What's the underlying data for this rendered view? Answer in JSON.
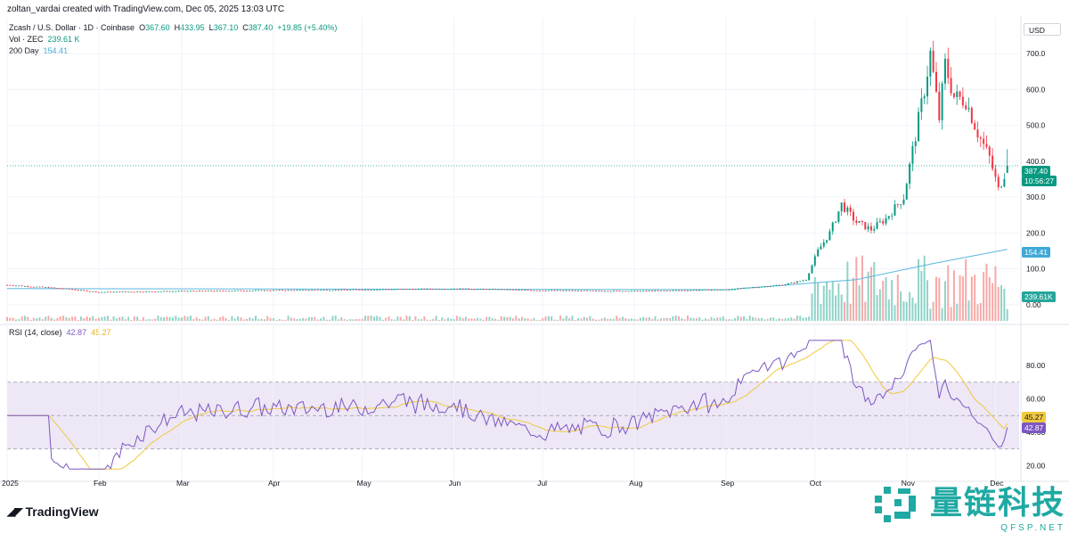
{
  "caption": "zoltan_vardai created with TradingView.com, Dec 05, 2025 13:03 UTC",
  "legend": {
    "symbol": "Zcash / U.S. Dollar · 1D · Coinbase",
    "o_lbl": "O",
    "o": "367.60",
    "h_lbl": "H",
    "h": "433.95",
    "l_lbl": "L",
    "l": "367.10",
    "c_lbl": "C",
    "c": "387.40",
    "chg": "+19.85 (+5.40%)",
    "vol_lbl": "Vol · ZEC",
    "vol": "239.61 K",
    "ma_lbl": "200 Day",
    "ma": "154.41",
    "rsi_lbl": "RSI (14, close)",
    "rsi": "42.87",
    "rsi_ma": "45.27"
  },
  "currency": "USD",
  "tags": {
    "price": "387.40",
    "countdown": "10:56:27",
    "ma": "154.41",
    "vol": "239.61K",
    "rsi_ma": "45.27",
    "rsi": "42.87"
  },
  "brand": "TradingView",
  "watermark": {
    "text": "量链科技",
    "sub": "QFSP.NET"
  },
  "colors": {
    "up": "#089981",
    "down": "#f23645",
    "ma200": "#5ab6e0",
    "rsi": "#7e57c2",
    "rsi_ma": "#f0c93c",
    "band": "#ede7f6"
  },
  "chart_data": [
    {
      "type": "candlestick",
      "title": "Zcash / U.S. Dollar · 1D · Coinbase",
      "x_ticks": [
        "2025",
        "Feb",
        "Mar",
        "Apr",
        "May",
        "Jun",
        "Jul",
        "Aug",
        "Sep",
        "Oct",
        "Nov",
        "Dec"
      ],
      "y_ticks": [
        "0.00",
        "100.0",
        "200.0",
        "300.0",
        "400.0",
        "500.0",
        "600.0",
        "700.0"
      ],
      "y_values": [
        0,
        100,
        200,
        300,
        400,
        500,
        600,
        700
      ],
      "ylim": [
        -50,
        800
      ],
      "legend": "top-left",
      "ohlc_anchor_closes": [
        [
          "2025-01-01",
          55
        ],
        [
          "2025-01-20",
          45
        ],
        [
          "2025-02-01",
          35
        ],
        [
          "2025-03-01",
          38
        ],
        [
          "2025-04-01",
          40
        ],
        [
          "2025-05-01",
          42
        ],
        [
          "2025-06-01",
          45
        ],
        [
          "2025-07-01",
          40
        ],
        [
          "2025-08-01",
          38
        ],
        [
          "2025-09-01",
          42
        ],
        [
          "2025-09-20",
          55
        ],
        [
          "2025-09-28",
          70
        ],
        [
          "2025-10-02",
          150
        ],
        [
          "2025-10-06",
          200
        ],
        [
          "2025-10-10",
          280
        ],
        [
          "2025-10-15",
          230
        ],
        [
          "2025-10-20",
          210
        ],
        [
          "2025-10-25",
          240
        ],
        [
          "2025-10-31",
          300
        ],
        [
          "2025-11-03",
          430
        ],
        [
          "2025-11-07",
          600
        ],
        [
          "2025-11-09",
          700
        ],
        [
          "2025-11-12",
          520
        ],
        [
          "2025-11-14",
          670
        ],
        [
          "2025-11-17",
          580
        ],
        [
          "2025-11-21",
          570
        ],
        [
          "2025-11-25",
          480
        ],
        [
          "2025-11-29",
          410
        ],
        [
          "2025-12-02",
          320
        ],
        [
          "2025-12-05",
          387.4
        ]
      ],
      "last": {
        "open": 367.6,
        "high": 433.95,
        "low": 367.1,
        "close": 387.4
      }
    },
    {
      "type": "line",
      "name": "200 Day",
      "points": [
        [
          "2025-01-01",
          45
        ],
        [
          "2025-09-01",
          42
        ],
        [
          "2025-10-15",
          70
        ],
        [
          "2025-11-10",
          115
        ],
        [
          "2025-12-05",
          154.41
        ]
      ]
    },
    {
      "type": "bar",
      "name": "Vol · ZEC",
      "last": 239.61
    },
    {
      "type": "line",
      "name": "RSI (14, close)",
      "y_ticks": [
        "20.00",
        "40.00",
        "60.00",
        "80.00"
      ],
      "y_values": [
        20,
        40,
        60,
        80
      ],
      "ylim": [
        16,
        96
      ],
      "band": [
        30,
        70
      ],
      "last_rsi": 42.87,
      "last_ma": 45.27
    }
  ]
}
